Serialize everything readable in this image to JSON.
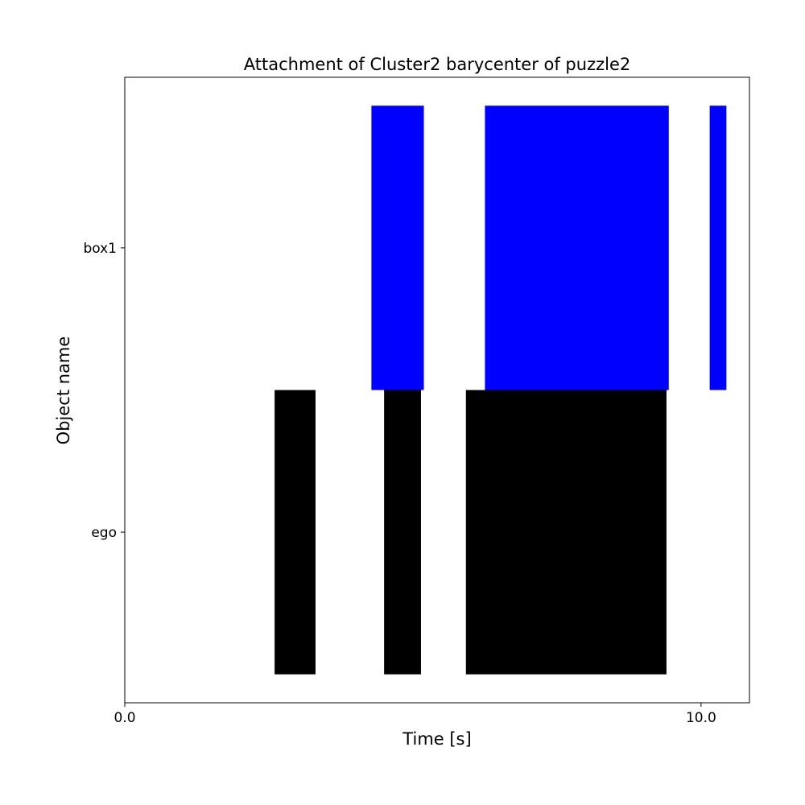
{
  "chart_data": {
    "type": "bar",
    "orientation": "horizontal",
    "title": "Attachment of Cluster2 barycenter of puzzle2",
    "xlabel": "Time [s]",
    "ylabel": "Object name",
    "xlim": [
      0.0,
      10.84
    ],
    "x_ticks": [
      {
        "value": 0.0,
        "label": "0.0"
      },
      {
        "value": 10.0,
        "label": "10.0"
      }
    ],
    "grid": false,
    "categories": [
      "box1",
      "ego"
    ],
    "series": [
      {
        "category": "box1",
        "color": "#0000ff",
        "intervals": [
          [
            4.28,
            5.19
          ],
          [
            6.25,
            9.44
          ],
          [
            10.15,
            10.44
          ]
        ]
      },
      {
        "category": "ego",
        "color": "#000000",
        "intervals": [
          [
            2.6,
            3.31
          ],
          [
            4.5,
            5.14
          ],
          [
            5.92,
            9.4
          ]
        ]
      }
    ]
  }
}
